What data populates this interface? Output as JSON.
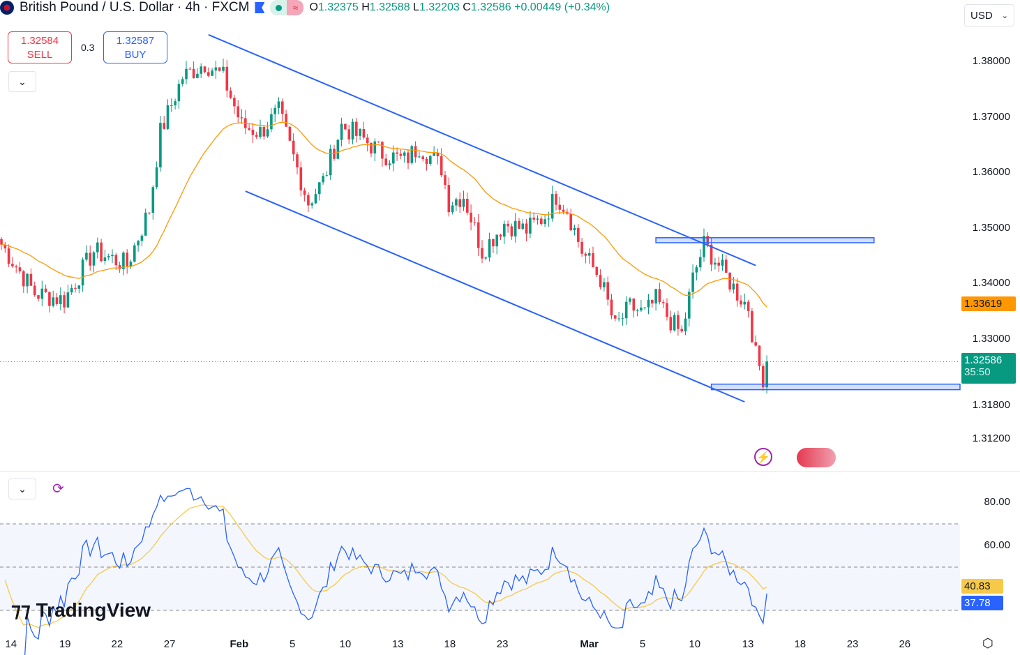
{
  "header": {
    "title": "British Pound / U.S. Dollar · 4h · FXCM",
    "o_label": "O",
    "o": "1.32375",
    "h_label": "H",
    "h": "1.32588",
    "l_label": "L",
    "l": "1.32203",
    "c_label": "C",
    "c": "1.32586",
    "change": "+0.00449 (+0.34%)"
  },
  "trade": {
    "sell_price": "1.32584",
    "sell_label": "SELL",
    "spread": "0.3",
    "buy_price": "1.32587",
    "buy_label": "BUY"
  },
  "currency": "USD",
  "colors": {
    "up": "#089981",
    "down": "#f23645",
    "ma": "#ff9800",
    "rsi": "#2962ff",
    "rsi_ma": "#f7c948",
    "line": "#2962ff"
  },
  "chart_data": {
    "type": "candlestick",
    "symbol": "GBPUSD",
    "timeframe": "4h",
    "price_ticks": [
      "1.38000",
      "1.37000",
      "1.36000",
      "1.35000",
      "1.34000",
      "1.33000",
      "1.31800",
      "1.31200"
    ],
    "price_tick_values": [
      1.38,
      1.37,
      1.36,
      1.35,
      1.34,
      1.33,
      1.318,
      1.312
    ],
    "x_ticks": [
      "14",
      "19",
      "22",
      "27",
      "Feb",
      "5",
      "10",
      "13",
      "18",
      "23",
      "Mar",
      "5",
      "10",
      "13",
      "18",
      "23",
      "26"
    ],
    "x_tick_bars": [
      2.6,
      17.2,
      31.3,
      45.5,
      64.3,
      78.7,
      93,
      107.2,
      121.3,
      135.5,
      159,
      173.4,
      187.5,
      201.9,
      216,
      230.2,
      244.3
    ],
    "close_waypoints": [
      [
        0,
        1.347
      ],
      [
        9,
        1.3382
      ],
      [
        17,
        1.337
      ],
      [
        25,
        1.3458
      ],
      [
        34,
        1.3433
      ],
      [
        40,
        1.3533
      ],
      [
        43,
        1.3672
      ],
      [
        49,
        1.3772
      ],
      [
        55,
        1.3797
      ],
      [
        60,
        1.3772
      ],
      [
        65,
        1.3684
      ],
      [
        70,
        1.3672
      ],
      [
        75,
        1.3709
      ],
      [
        78,
        1.3647
      ],
      [
        83,
        1.3546
      ],
      [
        87,
        1.3584
      ],
      [
        92,
        1.3684
      ],
      [
        98,
        1.3659
      ],
      [
        103,
        1.3634
      ],
      [
        109,
        1.3621
      ],
      [
        113,
        1.3647
      ],
      [
        119,
        1.3609
      ],
      [
        121,
        1.3546
      ],
      [
        125,
        1.3558
      ],
      [
        130,
        1.3458
      ],
      [
        136,
        1.3508
      ],
      [
        142,
        1.3496
      ],
      [
        147,
        1.3521
      ],
      [
        150,
        1.3558
      ],
      [
        153,
        1.3533
      ],
      [
        157,
        1.3458
      ],
      [
        162,
        1.3408
      ],
      [
        166,
        1.332
      ],
      [
        170,
        1.3357
      ],
      [
        174,
        1.3345
      ],
      [
        177,
        1.337
      ],
      [
        181,
        1.3332
      ],
      [
        184,
        1.3307
      ],
      [
        187,
        1.3408
      ],
      [
        190,
        1.347
      ],
      [
        194,
        1.3433
      ],
      [
        199,
        1.3382
      ],
      [
        202,
        1.3357
      ],
      [
        204,
        1.3269
      ],
      [
        206,
        1.3231
      ],
      [
        207,
        1.32586
      ]
    ],
    "ma_last": 1.33619,
    "last_price": "1.32586",
    "countdown": "35:50",
    "ma_value": "1.33619",
    "drawings": {
      "channel_upper": [
        [
          56,
          1.3848
        ],
        [
          204,
          1.3432
        ]
      ],
      "channel_lower": [
        [
          66,
          1.3566
        ],
        [
          201,
          1.3186
        ]
      ],
      "zones": [
        [
          177,
          236,
          1.3473,
          1.3482
        ],
        [
          192,
          260,
          1.3208,
          1.3218
        ]
      ]
    },
    "rsi": {
      "ticks": [
        "80.00",
        "60.00"
      ],
      "tick_values": [
        80,
        60
      ],
      "bands": [
        70,
        50,
        30
      ],
      "value": "37.78",
      "ma_value": "40.83"
    }
  },
  "watermark": "TradingView"
}
